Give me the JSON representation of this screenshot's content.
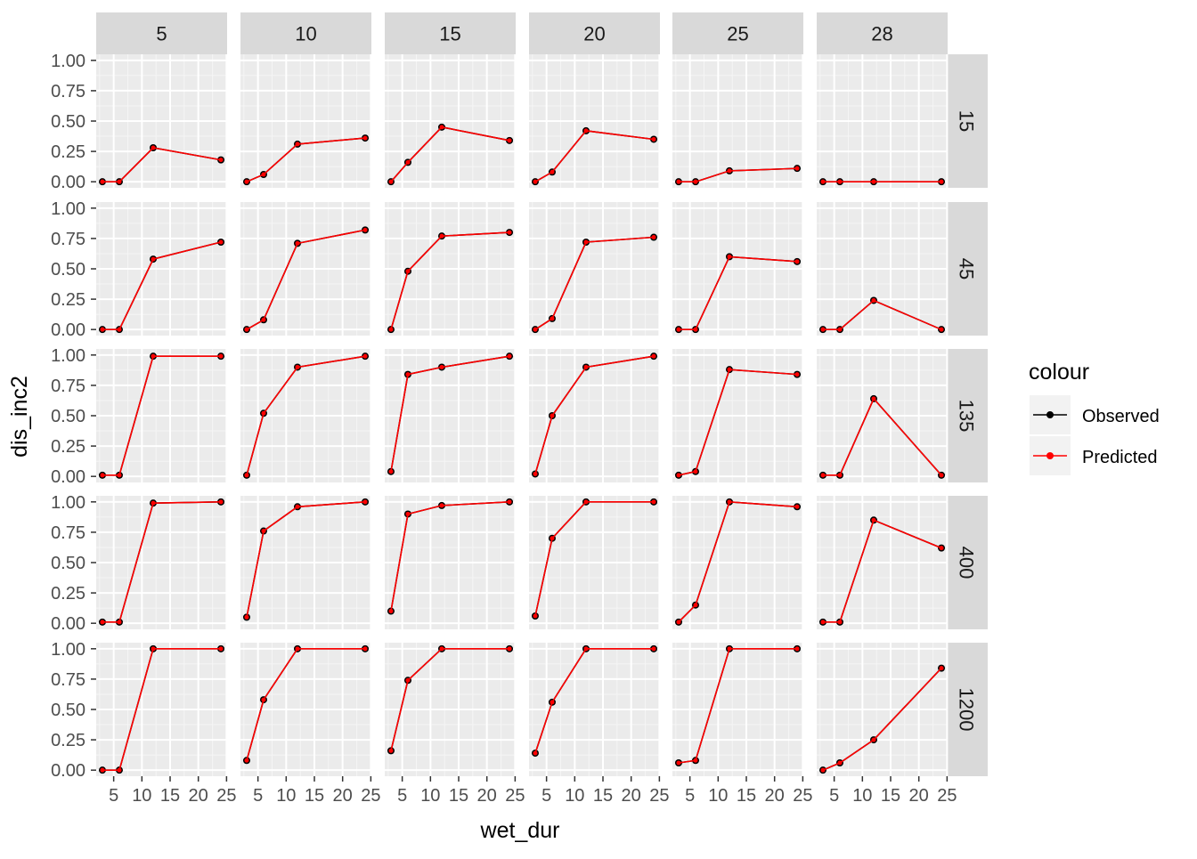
{
  "chart_data": {
    "type": "line",
    "title": "",
    "xlabel": "wet_dur",
    "ylabel": "dis_inc2",
    "xlim": [
      1.9,
      25.1
    ],
    "ylim": [
      -0.05,
      1.05
    ],
    "x_ticks": [
      5,
      10,
      15,
      20,
      25
    ],
    "y_ticks": [
      0.0,
      0.25,
      0.5,
      0.75,
      1.0
    ],
    "y_tick_labels": [
      "0.00",
      "0.25",
      "0.50",
      "0.75",
      "1.00"
    ],
    "col_facets": [
      "5",
      "10",
      "15",
      "20",
      "25",
      "28"
    ],
    "row_facets": [
      "15",
      "45",
      "135",
      "400",
      "1200"
    ],
    "x": [
      3,
      6,
      12,
      24
    ],
    "grid": true,
    "legend": {
      "title": "colour",
      "position": "right",
      "entries": [
        {
          "name": "Observed",
          "color": "#000000"
        },
        {
          "name": "Predicted",
          "color": "#ff0000"
        }
      ]
    },
    "panels": [
      [
        {
          "observed": [
            0.0,
            0.0,
            0.28,
            0.18
          ],
          "predicted": [
            0.0,
            0.0,
            0.28,
            0.18
          ]
        },
        {
          "observed": [
            0.0,
            0.06,
            0.31,
            0.36
          ],
          "predicted": [
            0.0,
            0.06,
            0.31,
            0.36
          ]
        },
        {
          "observed": [
            0.0,
            0.16,
            0.45,
            0.34
          ],
          "predicted": [
            0.0,
            0.16,
            0.45,
            0.34
          ]
        },
        {
          "observed": [
            0.0,
            0.08,
            0.42,
            0.35
          ],
          "predicted": [
            0.0,
            0.08,
            0.42,
            0.35
          ]
        },
        {
          "observed": [
            0.0,
            0.0,
            0.09,
            0.11
          ],
          "predicted": [
            0.0,
            0.0,
            0.09,
            0.11
          ]
        },
        {
          "observed": [
            0.0,
            0.0,
            0.0,
            0.0
          ],
          "predicted": [
            0.0,
            0.0,
            0.0,
            0.0
          ]
        }
      ],
      [
        {
          "observed": [
            0.0,
            0.0,
            0.58,
            0.72
          ],
          "predicted": [
            0.0,
            0.0,
            0.58,
            0.72
          ]
        },
        {
          "observed": [
            0.0,
            0.08,
            0.71,
            0.82
          ],
          "predicted": [
            0.0,
            0.08,
            0.71,
            0.82
          ]
        },
        {
          "observed": [
            0.0,
            0.48,
            0.77,
            0.8
          ],
          "predicted": [
            0.0,
            0.48,
            0.77,
            0.8
          ]
        },
        {
          "observed": [
            0.0,
            0.09,
            0.72,
            0.76
          ],
          "predicted": [
            0.0,
            0.09,
            0.72,
            0.76
          ]
        },
        {
          "observed": [
            0.0,
            0.0,
            0.6,
            0.56
          ],
          "predicted": [
            0.0,
            0.0,
            0.6,
            0.56
          ]
        },
        {
          "observed": [
            0.0,
            0.0,
            0.24,
            0.0
          ],
          "predicted": [
            0.0,
            0.0,
            0.24,
            0.0
          ]
        }
      ],
      [
        {
          "observed": [
            0.01,
            0.01,
            0.99,
            0.99
          ],
          "predicted": [
            0.01,
            0.01,
            0.99,
            0.99
          ]
        },
        {
          "observed": [
            0.01,
            0.52,
            0.9,
            0.99
          ],
          "predicted": [
            0.01,
            0.52,
            0.9,
            0.99
          ]
        },
        {
          "observed": [
            0.04,
            0.84,
            0.9,
            0.99
          ],
          "predicted": [
            0.04,
            0.84,
            0.9,
            0.99
          ]
        },
        {
          "observed": [
            0.02,
            0.5,
            0.9,
            0.99
          ],
          "predicted": [
            0.02,
            0.5,
            0.9,
            0.99
          ]
        },
        {
          "observed": [
            0.01,
            0.04,
            0.88,
            0.84
          ],
          "predicted": [
            0.01,
            0.04,
            0.88,
            0.84
          ]
        },
        {
          "observed": [
            0.01,
            0.01,
            0.64,
            0.01
          ],
          "predicted": [
            0.01,
            0.01,
            0.64,
            0.01
          ]
        }
      ],
      [
        {
          "observed": [
            0.01,
            0.01,
            0.99,
            1.0
          ],
          "predicted": [
            0.01,
            0.01,
            0.99,
            1.0
          ]
        },
        {
          "observed": [
            0.05,
            0.76,
            0.96,
            1.0
          ],
          "predicted": [
            0.05,
            0.76,
            0.96,
            1.0
          ]
        },
        {
          "observed": [
            0.1,
            0.9,
            0.97,
            1.0
          ],
          "predicted": [
            0.1,
            0.9,
            0.97,
            1.0
          ]
        },
        {
          "observed": [
            0.06,
            0.7,
            1.0,
            1.0
          ],
          "predicted": [
            0.06,
            0.7,
            1.0,
            1.0
          ]
        },
        {
          "observed": [
            0.01,
            0.15,
            1.0,
            0.96
          ],
          "predicted": [
            0.01,
            0.15,
            1.0,
            0.96
          ]
        },
        {
          "observed": [
            0.01,
            0.01,
            0.85,
            0.62
          ],
          "predicted": [
            0.01,
            0.01,
            0.85,
            0.62
          ]
        }
      ],
      [
        {
          "observed": [
            0.0,
            0.0,
            1.0,
            1.0
          ],
          "predicted": [
            0.0,
            0.0,
            1.0,
            1.0
          ]
        },
        {
          "observed": [
            0.08,
            0.58,
            1.0,
            1.0
          ],
          "predicted": [
            0.08,
            0.58,
            1.0,
            1.0
          ]
        },
        {
          "observed": [
            0.16,
            0.74,
            1.0,
            1.0
          ],
          "predicted": [
            0.16,
            0.74,
            1.0,
            1.0
          ]
        },
        {
          "observed": [
            0.14,
            0.56,
            1.0,
            1.0
          ],
          "predicted": [
            0.14,
            0.56,
            1.0,
            1.0
          ]
        },
        {
          "observed": [
            0.06,
            0.08,
            1.0,
            1.0
          ],
          "predicted": [
            0.06,
            0.08,
            1.0,
            1.0
          ]
        },
        {
          "observed": [
            0.0,
            0.06,
            0.25,
            0.84
          ],
          "predicted": [
            0.0,
            0.06,
            0.25,
            0.84
          ]
        }
      ]
    ]
  }
}
